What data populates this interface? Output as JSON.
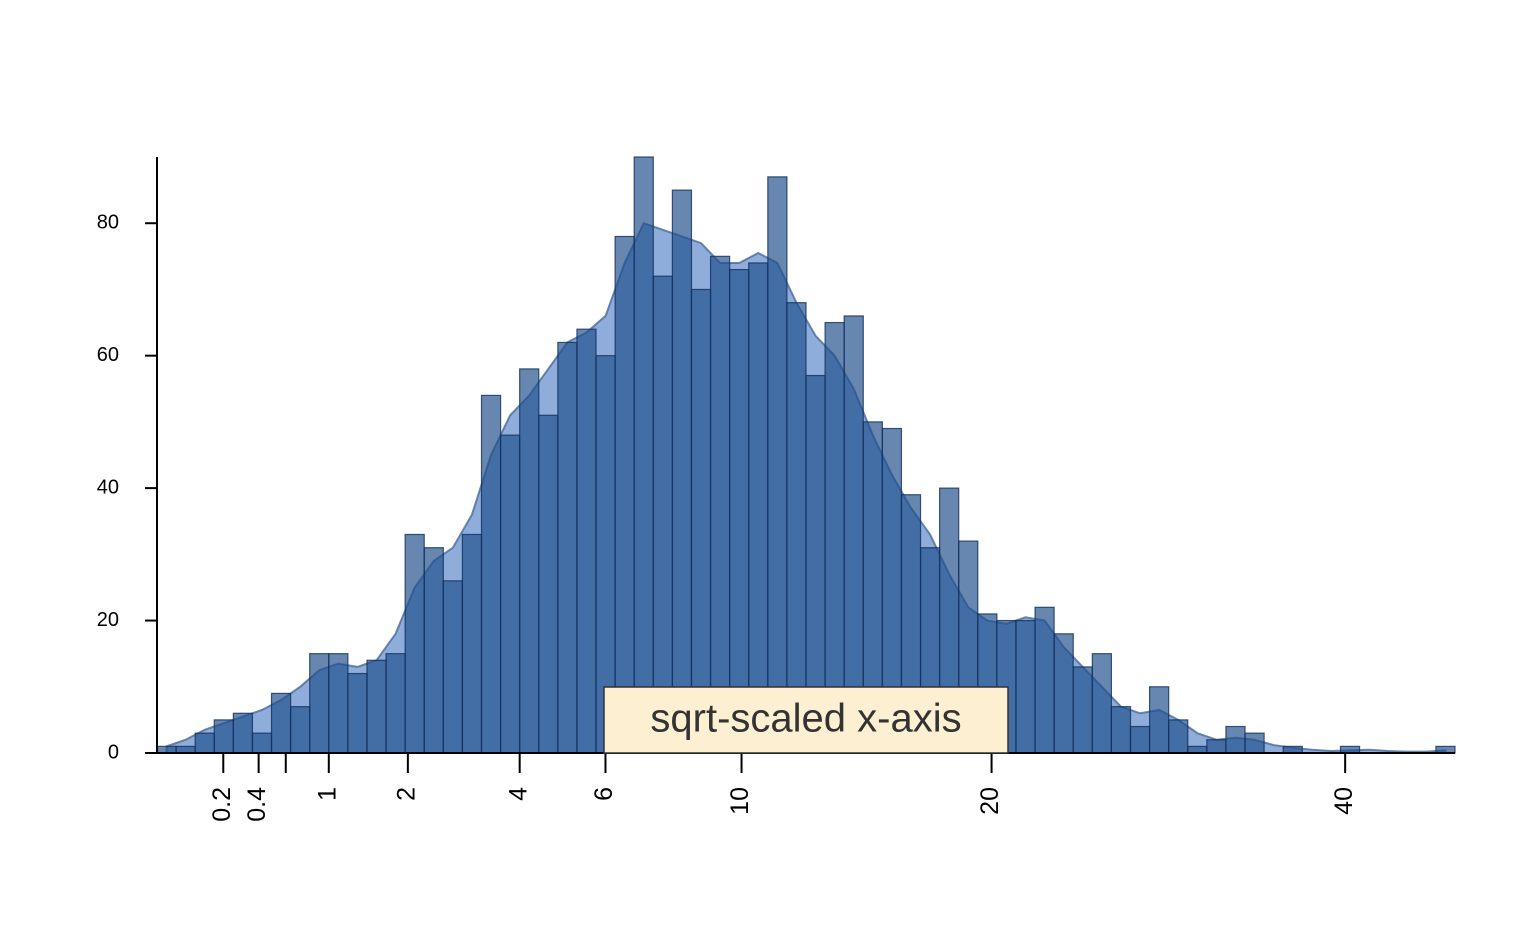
{
  "chart_data": {
    "type": "histogram",
    "bins": [
      0.01,
      0.04,
      0.09,
      0.16,
      0.25,
      0.36,
      0.49,
      0.64,
      0.81,
      1,
      1.21,
      1.44,
      1.69,
      1.96,
      2.25,
      2.56,
      2.89,
      3.24,
      3.61,
      4,
      4.41,
      4.84,
      5.29,
      5.76,
      6.25,
      6.76,
      7.29,
      7.84,
      8.41,
      9,
      9.61,
      10.24,
      10.89,
      11.56,
      12.25,
      12.96,
      13.69,
      14.44,
      15.21,
      16,
      16.81,
      17.64,
      18.49,
      19.36,
      20.25,
      21.16,
      22.09,
      23.04,
      24.01,
      25,
      26.01,
      27.04,
      28.09,
      29.16,
      30.25,
      31.36,
      32.49,
      33.64,
      34.81,
      36,
      37.21,
      38.44,
      39.69,
      40.96,
      42.25,
      43.56,
      44.89,
      46.24,
      47.61
    ],
    "values": [
      1,
      1,
      3,
      5,
      6,
      3,
      9,
      7,
      15,
      15,
      12,
      14,
      15,
      33,
      31,
      26,
      33,
      54,
      48,
      58,
      51,
      62,
      64,
      60,
      78,
      90,
      72,
      85,
      70,
      75,
      73,
      74,
      87,
      68,
      57,
      65,
      66,
      50,
      49,
      39,
      31,
      40,
      32,
      21,
      20,
      20,
      22,
      18,
      13,
      15,
      7,
      4,
      10,
      5,
      1,
      2,
      4,
      3,
      0,
      1,
      0,
      0,
      1,
      0,
      0,
      0,
      0,
      1
    ],
    "density": [
      1,
      2,
      3.5,
      4.5,
      5.5,
      6.5,
      8,
      10,
      12.5,
      13.5,
      13,
      14,
      18,
      25,
      29,
      31,
      36,
      45,
      51,
      54,
      58,
      62,
      63.5,
      66,
      74,
      80,
      79,
      78,
      77,
      74,
      74,
      75.5,
      74,
      68,
      63,
      60,
      55,
      48,
      42,
      37,
      33,
      27,
      22,
      20,
      19.5,
      20.5,
      20,
      16,
      13,
      10,
      7,
      6,
      6.5,
      5,
      3,
      2,
      2.3,
      2,
      1.2,
      0.8,
      0.5,
      0.3,
      0.4,
      0.5,
      0.3,
      0.2,
      0.2,
      0.4
    ],
    "color": "#1f4e8c",
    "density_color": "#7a9fd4",
    "xscale": "sqrt",
    "xlim": [
      0.01,
      47.61
    ],
    "ylim": [
      0,
      90
    ],
    "xticks": [
      0.2,
      0.4,
      {
        "value": 0.6,
        "label": null
      },
      1,
      2,
      4,
      6,
      10,
      20,
      40
    ],
    "yticks": [
      0,
      20,
      40,
      60,
      80
    ],
    "grid": false,
    "annotation": "sqrt-scaled x-axis"
  }
}
